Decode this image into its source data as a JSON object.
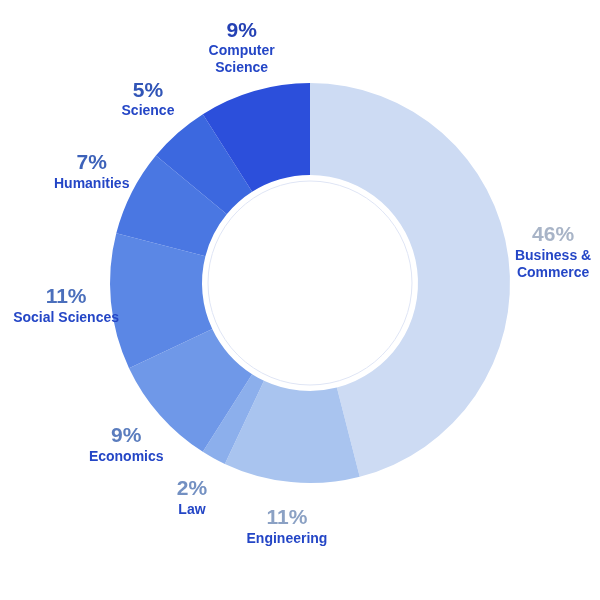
{
  "chart_data": {
    "type": "doughnut",
    "categories": [
      "Business & Commerce",
      "Engineering",
      "Law",
      "Economics",
      "Social Sciences",
      "Humanities",
      "Science",
      "Computer Science"
    ],
    "values": [
      46,
      11,
      2,
      9,
      11,
      7,
      5,
      9
    ],
    "value_labels": [
      "46%",
      "11%",
      "2%",
      "9%",
      "11%",
      "7%",
      "5%",
      "9%"
    ],
    "colors": [
      "#cddbf3",
      "#a9c4ef",
      "#8cafec",
      "#6f98e8",
      "#5b87e5",
      "#4a77e2",
      "#3c68df",
      "#2c4fdb"
    ],
    "data_labels": true
  }
}
